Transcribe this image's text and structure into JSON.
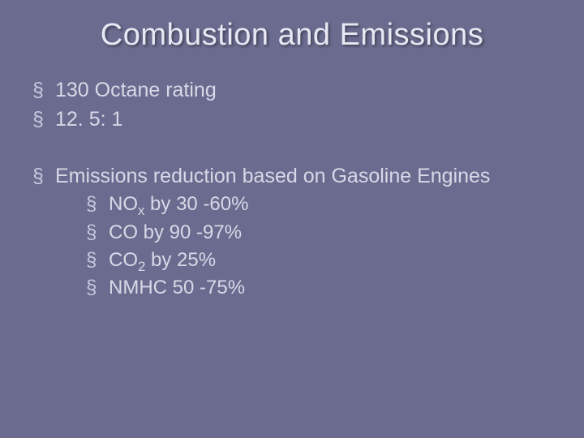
{
  "background_color": "#6b6b8f",
  "text_color": "#d8d8e8",
  "title_color": "#e8e8f4",
  "bullet_marker": "§",
  "title": "Combustion and Emissions",
  "title_fontsize": 38,
  "bullet_fontsize": 25,
  "sub_bullet_fontsize": 24,
  "bullets_group1": [
    "130 Octane rating",
    "12. 5: 1"
  ],
  "bullet_heading": "Emissions reduction based on Gasoline Engines",
  "sub_bullets": [
    {
      "text_before": "NO",
      "subscript": "x",
      "text_after": " by 30 -60%"
    },
    {
      "text_before": "CO by 90 -97%",
      "subscript": "",
      "text_after": ""
    },
    {
      "text_before": "CO",
      "subscript": "2",
      "text_after": " by 25%"
    },
    {
      "text_before": "NMHC 50 -75%",
      "subscript": "",
      "text_after": ""
    }
  ]
}
